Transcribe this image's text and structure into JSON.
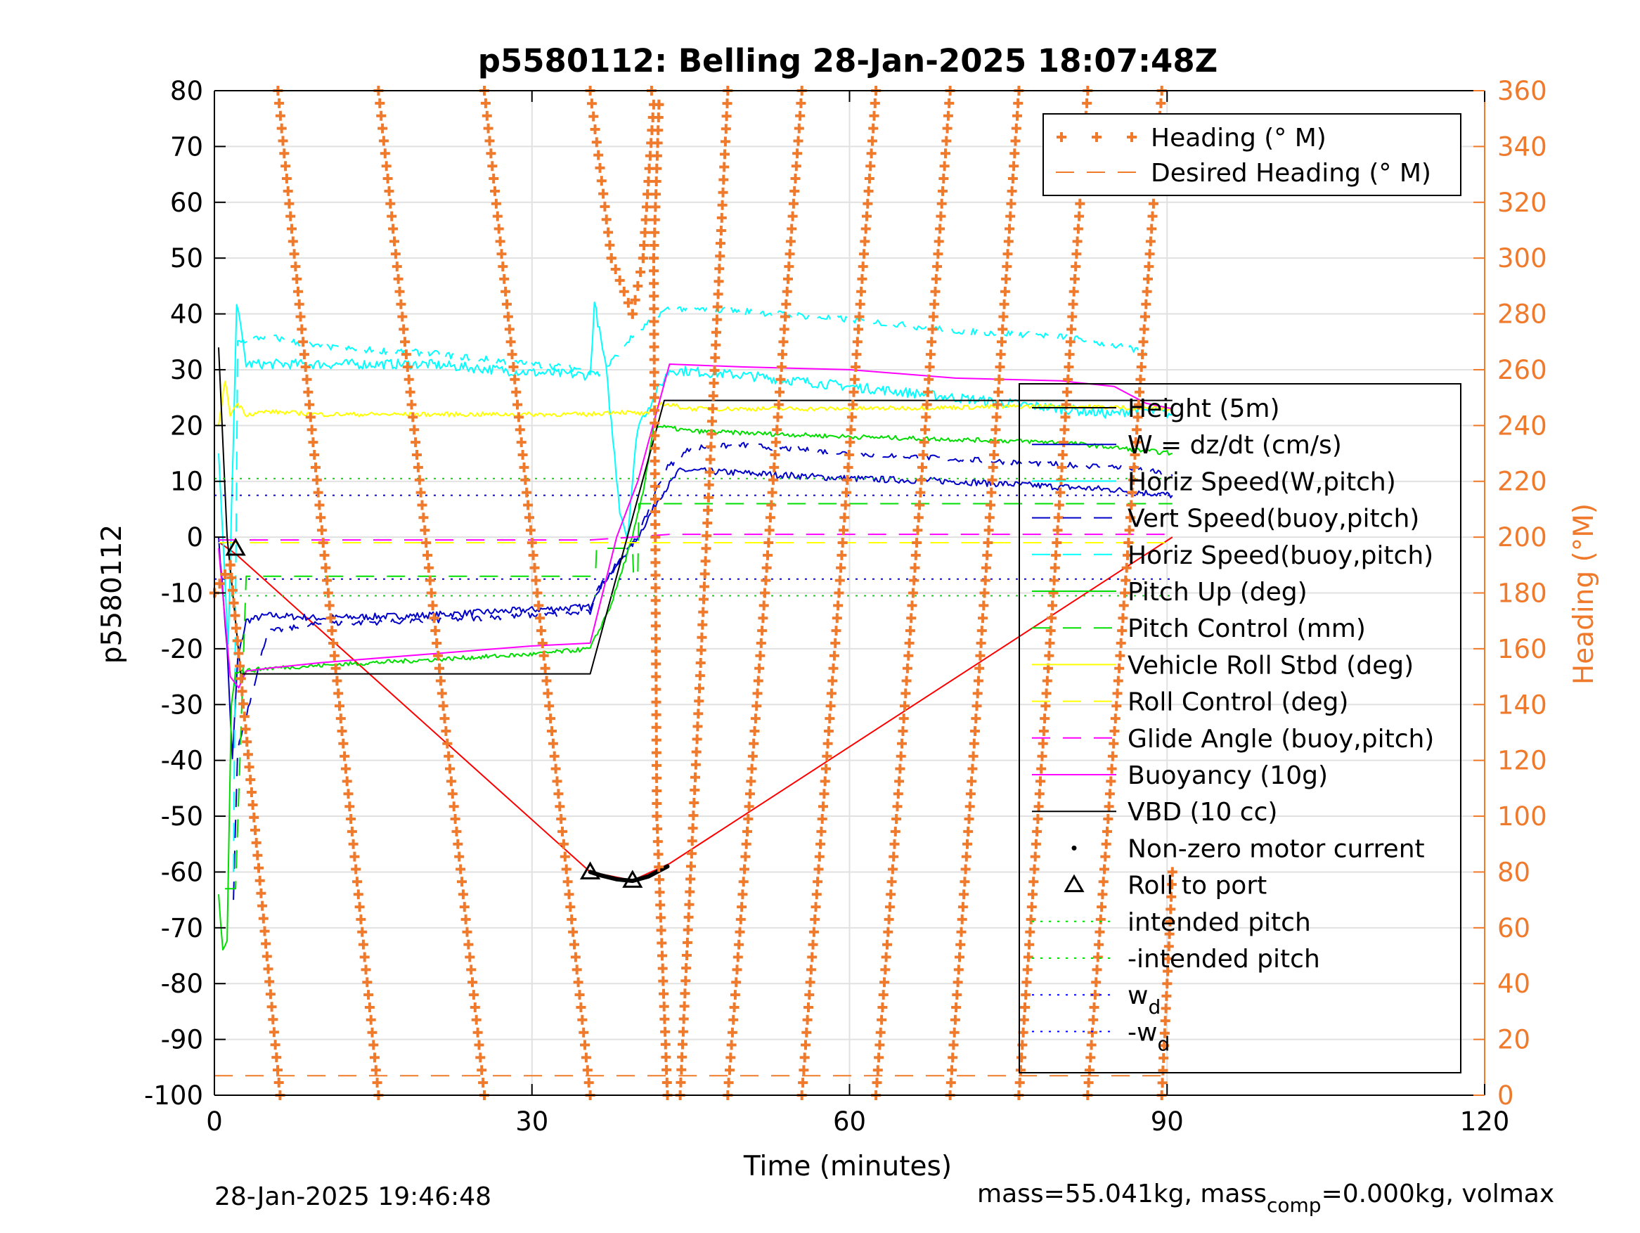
{
  "chart_data": {
    "type": "line",
    "title": "p5580112: Belling 28-Jan-2025 18:07:48Z",
    "xlabel": "Time (minutes)",
    "ylabel": "p5580112",
    "y2label": "Heading (°M)",
    "xlim": [
      0,
      120
    ],
    "ylim": [
      -100,
      80
    ],
    "y2lim": [
      0,
      360
    ],
    "xticks": [
      "0",
      "30",
      "60",
      "90",
      "120"
    ],
    "yticks": [
      "80",
      "70",
      "60",
      "50",
      "40",
      "30",
      "20",
      "10",
      "0",
      "-10",
      "-20",
      "-30",
      "-40",
      "-50",
      "-60",
      "-70",
      "-80",
      "-90",
      "-100"
    ],
    "y2ticks": [
      "360",
      "340",
      "320",
      "300",
      "280",
      "260",
      "240",
      "220",
      "200",
      "180",
      "160",
      "140",
      "120",
      "100",
      "80",
      "60",
      "40",
      "20",
      "0"
    ],
    "grid": true,
    "legend_right_axis": {
      "placement": "top-right",
      "entries": [
        "Heading (° M)",
        "Desired Heading (° M)"
      ]
    },
    "legend_left_axis": {
      "placement": "right",
      "entries": [
        "Height (5m)",
        "W = dz/dt (cm/s)",
        "Horiz Speed(W,pitch)",
        "Vert Speed(buoy,pitch)",
        "Horiz Speed(buoy,pitch)",
        "Pitch Up (deg)",
        "Pitch Control (mm)",
        "Vehicle Roll Stbd (deg)",
        "Roll Control (deg)",
        "Glide Angle (buoy,pitch)",
        "Buoyancy (10g)",
        "VBD (10 cc)",
        "Non-zero motor current",
        "Roll to port",
        "intended pitch",
        "-intended pitch",
        "w",
        "-w"
      ],
      "subscripts": {
        "16": "d",
        "17": "d"
      }
    },
    "colors": {
      "heading": "#f07a2c",
      "height": "#ff0000",
      "w": "#0000c8",
      "horiz_w": "#00ffff",
      "vert_buoy": "#0000c8",
      "horiz_buoy": "#00ffff",
      "pitch": "#00dd00",
      "pitch_ctrl": "#00dd00",
      "roll": "#ffff00",
      "roll_ctrl": "#ffff00",
      "glide": "#ff00ff",
      "buoyancy": "#ff00ff",
      "vbd": "#000000",
      "motor": "#000000",
      "intended_pitch": "#00dd00",
      "wd": "#0000ff"
    },
    "series": [
      {
        "name": "Height (5m)",
        "x": [
          0.5,
          2,
          35.5,
          39.5,
          43,
          90.5
        ],
        "y": [
          -1,
          -3,
          -60,
          -61.5,
          -58.5,
          0
        ]
      },
      {
        "name": "W = dz/dt (cm/s)",
        "x": [
          0.4,
          1.2,
          1.7,
          2.2,
          3,
          5,
          10,
          20,
          30,
          35.5,
          36,
          38,
          40,
          42,
          44,
          50,
          60,
          70,
          80,
          85,
          90.5
        ],
        "y": [
          0,
          -20,
          -40,
          -22,
          -15,
          -14,
          -14.5,
          -14,
          -13,
          -12.5,
          -10,
          -5,
          0,
          7,
          12,
          11.5,
          10.5,
          10,
          9,
          8.5,
          7.5
        ]
      },
      {
        "name": "Horiz Speed(W,pitch)",
        "x": [
          0.4,
          1.3,
          2.1,
          3,
          10,
          20,
          30,
          35.5,
          35.9,
          37,
          38.3,
          39,
          40,
          43,
          50,
          60,
          70,
          80,
          85,
          87,
          90.5
        ],
        "y": [
          15,
          -20,
          42,
          31,
          31,
          31,
          29.5,
          29,
          42,
          30,
          5,
          0,
          20,
          30,
          29,
          27,
          25,
          23,
          22,
          23,
          22
        ]
      },
      {
        "name": "Vert Speed(buoy,pitch)",
        "x": [
          1.8,
          2.2,
          5,
          10,
          20,
          30,
          35.5,
          36,
          38,
          40,
          42.5,
          45,
          50,
          60,
          70,
          80,
          86,
          88,
          90.5
        ],
        "y": [
          -65,
          -38,
          -17,
          -15.5,
          -15,
          -14,
          -13.5,
          -10,
          -5,
          0,
          12,
          16,
          16.5,
          15,
          14,
          13,
          12.5,
          12,
          11
        ]
      },
      {
        "name": "Horiz Speed(buoy,pitch)",
        "x": [
          1.8,
          2.2,
          5,
          10,
          20,
          30,
          35.5,
          36.5,
          39,
          42,
          43,
          50,
          60,
          70,
          80,
          86,
          88
        ],
        "y": [
          -60,
          35,
          36,
          34,
          33,
          31,
          30,
          29,
          35,
          40,
          41,
          40.5,
          39,
          37,
          36,
          34,
          33
        ]
      },
      {
        "name": "Pitch Up (deg)",
        "x": [
          0.4,
          0.8,
          1.2,
          1.6,
          2,
          2.8,
          5,
          10,
          20,
          30,
          35.5,
          37.5,
          39.5,
          40.5,
          41.5,
          45,
          60,
          80,
          90.5
        ],
        "y": [
          -64,
          -74,
          -72,
          -30,
          -24,
          -24,
          -23.5,
          -23,
          -22,
          -21,
          -20,
          -12,
          0,
          8,
          20,
          19,
          18,
          17,
          15
        ]
      },
      {
        "name": "Pitch Control (mm)",
        "x": [
          1,
          2,
          3,
          36,
          36.1,
          39.5,
          39.6,
          40,
          40.1,
          90.5
        ],
        "y": [
          -63,
          -63,
          -7,
          -7,
          -2,
          -2,
          -7,
          -7,
          6,
          6
        ]
      },
      {
        "name": "Vehicle Roll Stbd (deg)",
        "x": [
          0.4,
          1,
          1.5,
          2.2,
          3,
          5,
          10,
          20,
          30,
          35.5,
          38,
          41,
          42,
          45,
          60,
          80,
          90.5
        ],
        "y": [
          20,
          28,
          22,
          24,
          22,
          22.5,
          22,
          22,
          22,
          22,
          22.5,
          22,
          24,
          23,
          23,
          23.5,
          23
        ]
      },
      {
        "name": "Roll Control (deg)",
        "x": [
          0.4,
          90.5
        ],
        "y": [
          -1,
          -1
        ]
      },
      {
        "name": "Glide Angle (buoy,pitch)",
        "x": [
          0.4,
          35.5,
          39.5,
          43,
          90.5
        ],
        "y": [
          -0.5,
          -0.5,
          0,
          0.5,
          0.5
        ]
      },
      {
        "name": "Buoyancy (10g)",
        "x": [
          0.4,
          1.5,
          2.3,
          3,
          5,
          10,
          20,
          30,
          35.5,
          38,
          40,
          43,
          50,
          60,
          70,
          80,
          85,
          88,
          90.5
        ],
        "y": [
          -2,
          -25,
          -27,
          -24,
          -23.5,
          -22.5,
          -21,
          -19.5,
          -19,
          0,
          10,
          31,
          30.5,
          30,
          28.5,
          28,
          27,
          24,
          23
        ]
      },
      {
        "name": "VBD (10 cc)",
        "x": [
          0.4,
          1.2,
          2.5,
          35.5,
          42.5,
          90.5
        ],
        "y": [
          34,
          0,
          -24.5,
          -24.5,
          24.5,
          24.5
        ]
      },
      {
        "name": "intended pitch",
        "x": [
          0,
          90.5
        ],
        "y": [
          10.5,
          10.5
        ]
      },
      {
        "name": "-intended pitch",
        "x": [
          0,
          90.5
        ],
        "y": [
          -10.5,
          -10.5
        ]
      },
      {
        "name": "w",
        "x": [
          0,
          90.5
        ],
        "y": [
          7.5,
          7.5
        ]
      },
      {
        "name": "-w",
        "x": [
          0,
          90.5
        ],
        "y": [
          -7.5,
          -7.5
        ]
      }
    ],
    "desired_heading": {
      "name": "Desired Heading (° M)",
      "x": [
        0,
        90.5
      ],
      "y": [
        7,
        7
      ]
    },
    "heading_passes": [
      {
        "x0": 6.2,
        "x1": 6.2,
        "xs": [
          -0.3,
          0.0,
          1.5,
          6.2
        ],
        "ys": [
          160,
          180,
          190,
          0
        ]
      },
      {
        "x": [
          6.0,
          15.5
        ],
        "y": [
          360,
          0
        ]
      },
      {
        "x": [
          15.5,
          25.5
        ],
        "y": [
          360,
          0
        ]
      },
      {
        "x": [
          25.5,
          35.5
        ],
        "y": [
          360,
          0
        ]
      },
      {
        "x": [
          35.5,
          37.5,
          39.5
        ],
        "y": [
          360,
          300,
          280
        ]
      },
      {
        "x": [
          39.5,
          40.5,
          41.5
        ],
        "y": [
          280,
          300,
          355
        ]
      },
      {
        "x": [
          41.3,
          42.0,
          41.5
        ],
        "y": [
          360,
          355,
          300
        ]
      },
      {
        "x": [
          41.5,
          41.8,
          42.8
        ],
        "y": [
          300,
          100,
          0
        ]
      },
      {
        "x": [
          44.0,
          48.5
        ],
        "y": [
          0,
          360
        ]
      },
      {
        "x": [
          48.5,
          55.5
        ],
        "y": [
          0,
          360
        ]
      },
      {
        "x": [
          55.5,
          62.5
        ],
        "y": [
          0,
          360
        ]
      },
      {
        "x": [
          62.5,
          69.5
        ],
        "y": [
          0,
          360
        ]
      },
      {
        "x": [
          69.5,
          76.0
        ],
        "y": [
          0,
          360
        ]
      },
      {
        "x": [
          76.0,
          82.5
        ],
        "y": [
          0,
          360
        ]
      },
      {
        "x": [
          82.5,
          89.5
        ],
        "y": [
          0,
          360
        ]
      },
      {
        "x": [
          89.5,
          90.5
        ],
        "y": [
          0,
          80
        ]
      }
    ],
    "motor_current": [
      {
        "x": 35.5,
        "y": -60
      },
      {
        "x": 36.5,
        "y": -60.6
      },
      {
        "x": 38,
        "y": -61.3
      },
      {
        "x": 39.5,
        "y": -61.6
      },
      {
        "x": 41,
        "y": -60.8
      },
      {
        "x": 42,
        "y": -59.8
      },
      {
        "x": 42.8,
        "y": -59
      }
    ],
    "roll_to_port": [
      {
        "x": 2,
        "y": -2
      },
      {
        "x": 35.5,
        "y": -60
      },
      {
        "x": 39.5,
        "y": -61.5
      }
    ]
  },
  "footer": {
    "left": "28-Jan-2025 19:46:48",
    "right_prefix": "mass=55.041kg, mass",
    "right_sub": "comp",
    "right_suffix": "=0.000kg, volmax"
  }
}
